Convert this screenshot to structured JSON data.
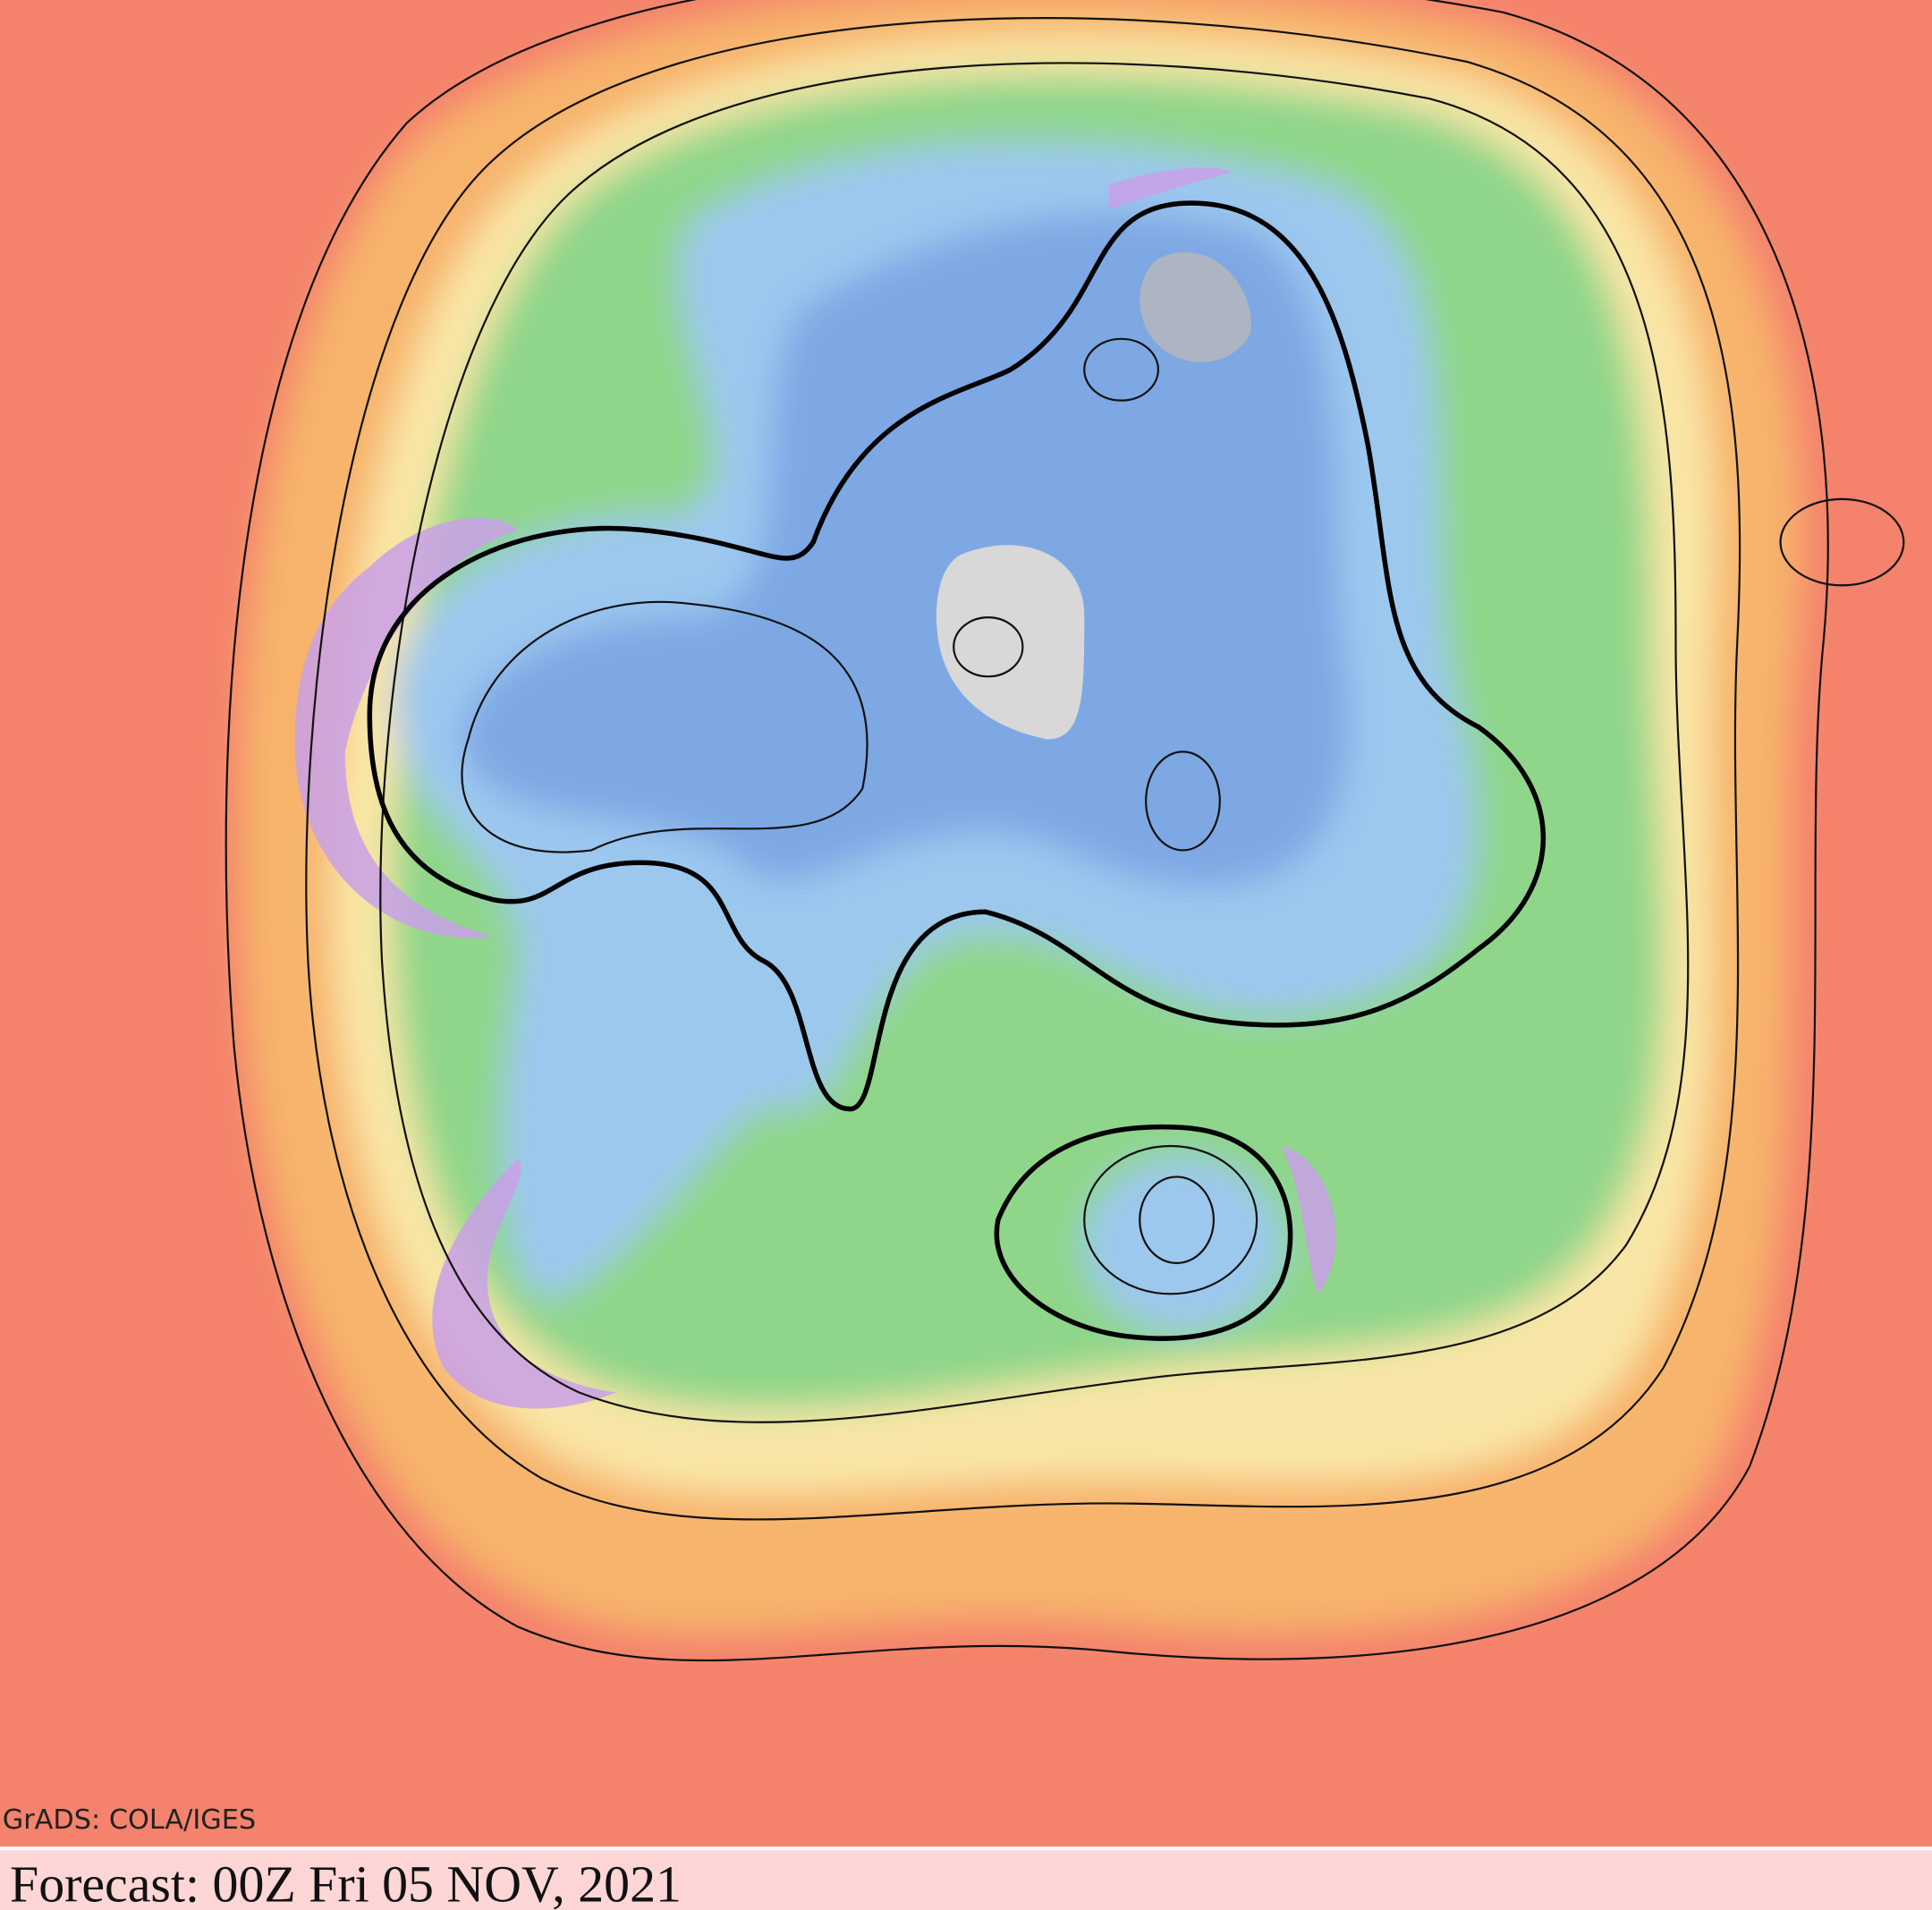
{
  "footer": {
    "credit": "GrADS: COLA/IGES",
    "forecast": "Forecast: 00Z Fri 05 NOV, 2021"
  }
}
